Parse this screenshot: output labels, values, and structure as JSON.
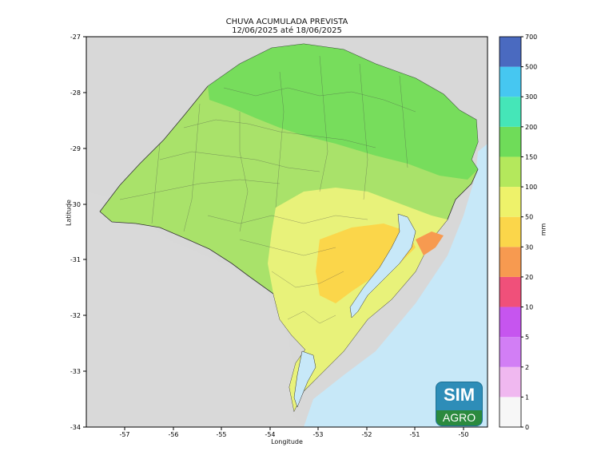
{
  "title_line1": "CHUVA ACUMULADA PREVISTA",
  "title_line2": "12/06/2025 até 18/06/2025",
  "axes": {
    "xlabel": "Longitude",
    "ylabel": "Latitude",
    "xticks": [
      "-57",
      "-56",
      "-55",
      "-54",
      "-53",
      "-52",
      "-51",
      "-50"
    ],
    "yticks": [
      "-27",
      "-28",
      "-29",
      "-30",
      "-31",
      "-32",
      "-33",
      "-34"
    ]
  },
  "colorbar": {
    "unit": "mm",
    "levels": [
      "0",
      "1",
      "2",
      "5",
      "10",
      "20",
      "30",
      "50",
      "100",
      "150",
      "200",
      "300",
      "500",
      "700"
    ],
    "colors": [
      "#f7f7f7",
      "#f0b8f0",
      "#d27ef5",
      "#c655ef",
      "#f0507a",
      "#f79a50",
      "#fbd64a",
      "#eef26a",
      "#b4e85c",
      "#6fdc59",
      "#45e6b8",
      "#46c7f1",
      "#4a6ac0",
      "#3c3ea0"
    ]
  },
  "logo": {
    "name": "SIM",
    "sub": "AGRO"
  },
  "colors": {
    "ocean": "#c7e8f8",
    "land_outside": "#d8d8d8",
    "rain_main": "#a9e26a",
    "rain_heavy": "#6fdc59",
    "rain_light": "#e8f27a",
    "rain_low": "#fbd64a"
  }
}
